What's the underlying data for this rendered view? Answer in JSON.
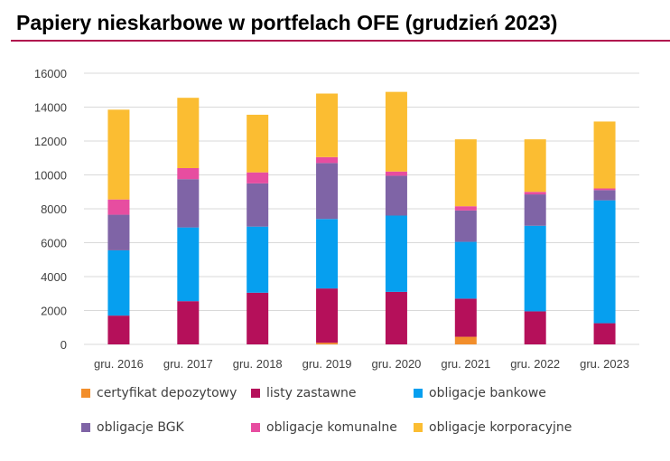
{
  "title": "Papiery nieskarbowe w portfelach OFE (grudzień 2023)",
  "chart_data": {
    "type": "bar",
    "stacked": true,
    "categories": [
      "gru. 2016",
      "gru. 2017",
      "gru. 2018",
      "gru. 2019",
      "gru. 2020",
      "gru. 2021",
      "gru. 2022",
      "gru. 2023"
    ],
    "ylim": [
      0,
      16000
    ],
    "yticks": [
      0,
      2000,
      4000,
      6000,
      8000,
      10000,
      12000,
      14000,
      16000
    ],
    "grid": true,
    "legend_position": "bottom",
    "series": [
      {
        "name": "certyfikat depozytowy",
        "color": "#f28e2b",
        "values": [
          0,
          0,
          0,
          100,
          0,
          450,
          0,
          0
        ]
      },
      {
        "name": "listy zastawne",
        "color": "#b5105a",
        "values": [
          1700,
          2550,
          3050,
          3200,
          3100,
          2250,
          1950,
          1250
        ]
      },
      {
        "name": "obligacje bankowe",
        "color": "#069fef",
        "values": [
          3850,
          4350,
          3900,
          4100,
          4500,
          3350,
          5050,
          7250
        ]
      },
      {
        "name": "obligacje BGK",
        "color": "#7f64a6",
        "values": [
          2100,
          2850,
          2550,
          3300,
          2350,
          1850,
          1850,
          600
        ]
      },
      {
        "name": "obligacje komunalne",
        "color": "#e74da0",
        "values": [
          900,
          650,
          650,
          350,
          250,
          250,
          150,
          100
        ]
      },
      {
        "name": "obligacje korporacyjne",
        "color": "#fbbd32",
        "values": [
          5300,
          4150,
          3400,
          3750,
          4700,
          3950,
          3100,
          3950
        ]
      }
    ]
  },
  "legend": {
    "items": [
      {
        "label": "certyfikat depozytowy",
        "color": "#f28e2b"
      },
      {
        "label": "listy zastawne",
        "color": "#b5105a"
      },
      {
        "label": "obligacje bankowe",
        "color": "#069fef"
      },
      {
        "label": "obligacje BGK",
        "color": "#7f64a6"
      },
      {
        "label": "obligacje komunalne",
        "color": "#e74da0"
      },
      {
        "label": "obligacje korporacyjne",
        "color": "#fbbd32"
      }
    ]
  }
}
